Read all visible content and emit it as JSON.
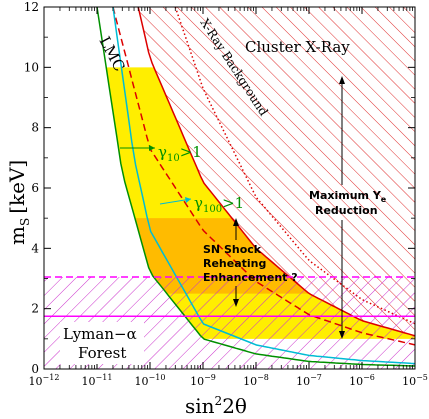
{
  "chart_data": {
    "type": "line",
    "xlabel": "sin²2θ",
    "ylabel": "m_S [keV]",
    "xscale": "log",
    "xlim": [
      1e-12,
      1e-05
    ],
    "ylim": [
      0,
      12
    ],
    "x_ticks": [
      {
        "value": 1e-12,
        "base": "10",
        "exp": "−12"
      },
      {
        "value": 1e-11,
        "base": "10",
        "exp": "−11"
      },
      {
        "value": 1e-10,
        "base": "10",
        "exp": "−10"
      },
      {
        "value": 1e-09,
        "base": "10",
        "exp": "−9"
      },
      {
        "value": 1e-08,
        "base": "10",
        "exp": "−8"
      },
      {
        "value": 1e-07,
        "base": "10",
        "exp": "−7"
      },
      {
        "value": 1e-06,
        "base": "10",
        "exp": "−6"
      },
      {
        "value": 1e-05,
        "base": "10",
        "exp": "−5"
      }
    ],
    "y_ticks": [
      0,
      2,
      4,
      6,
      8,
      10,
      12
    ],
    "regions": [
      {
        "name": "Cluster X-Ray",
        "ymin": 0,
        "ymax": 12,
        "boundary": "red-solid",
        "fill": "hatch-red"
      },
      {
        "name": "Lyman-α Forest",
        "ymin": 0,
        "ymax": 3,
        "fill": "hatch-magenta"
      },
      {
        "name": "Maximum Y_e Reduction",
        "ymin": 1,
        "ymax": 10,
        "fill": "yellow"
      },
      {
        "name": "SN Shock Reheating Enhancement ?",
        "ymin": 2.5,
        "ymax": 5,
        "fill": "orange"
      }
    ],
    "curves": [
      {
        "label": "Cluster X-Ray boundary",
        "color": "#dd0000",
        "style": "solid",
        "x": [
          6e-11,
          1e-10,
          1e-09,
          1e-08,
          1e-07,
          1e-06,
          1e-05
        ],
        "y": [
          12,
          10.3,
          6.2,
          4.0,
          2.5,
          1.6,
          1.1
        ]
      },
      {
        "label": "X-Ray Background",
        "color": "#dd0000",
        "style": "dotted",
        "x": [
          3e-10,
          1e-09,
          1e-08,
          1e-07,
          1e-06,
          1e-05
        ],
        "y": [
          12,
          9.3,
          5.7,
          3.6,
          2.3,
          1.5
        ]
      },
      {
        "label": "LMC",
        "color": "#dd0000",
        "style": "dashed",
        "x": [
          2e-11,
          1e-10,
          1e-09,
          1e-08,
          1e-07,
          1e-06,
          1e-05
        ],
        "y": [
          12,
          7.3,
          4.6,
          2.9,
          1.8,
          1.2,
          0.8
        ]
      },
      {
        "label": "γ10>1",
        "color": "#009000",
        "style": "solid",
        "x": [
          1e-11,
          3e-11,
          1e-10,
          1e-09,
          1e-08,
          1e-07,
          1e-06,
          1e-05
        ],
        "y": [
          12,
          6.5,
          3.2,
          1.0,
          0.5,
          0.25,
          0.15,
          0.1
        ]
      },
      {
        "label": "γ100>1",
        "color": "#00bcd4",
        "style": "solid",
        "x": [
          2e-11,
          5e-11,
          1e-10,
          1e-09,
          1e-08,
          1e-07,
          1e-06,
          1e-05
        ],
        "y": [
          12,
          7.0,
          4.6,
          1.5,
          0.8,
          0.45,
          0.28,
          0.18
        ]
      },
      {
        "label": "Lyman-α bound 3 keV",
        "color": "#ff00ff",
        "style": "dashed",
        "x": [
          1e-12,
          1e-05
        ],
        "y": [
          3.05,
          3.05
        ]
      },
      {
        "label": "Lyman-α bound 1.7 keV",
        "color": "#ff00ff",
        "style": "solid",
        "x": [
          1e-12,
          1e-05
        ],
        "y": [
          1.75,
          1.75
        ]
      }
    ],
    "annotations": {
      "lmc": "LMC",
      "xray_background": "X-Ray Background",
      "cluster_xray": "Cluster X-Ray",
      "gamma10_base": "γ",
      "gamma10_sub": "10",
      "gamma10_rest": ">1",
      "gamma100_base": "γ",
      "gamma100_sub": "100",
      "gamma100_rest": ">1",
      "max_ye_line1_base": "Maximum Y",
      "max_ye_line1_sub": "e",
      "max_ye_line2": "Reduction",
      "sn_line1": "SN Shock",
      "sn_line2": "Reheating",
      "sn_line3": "Enhancement ?",
      "lyman_line1": "Lyman−α",
      "lyman_line2": "Forest"
    },
    "ylabel_main": "m",
    "ylabel_sub": "S",
    "ylabel_unit": "[keV]",
    "xlabel_main": "sin",
    "xlabel_sup": "2",
    "xlabel_rest": "2θ"
  }
}
